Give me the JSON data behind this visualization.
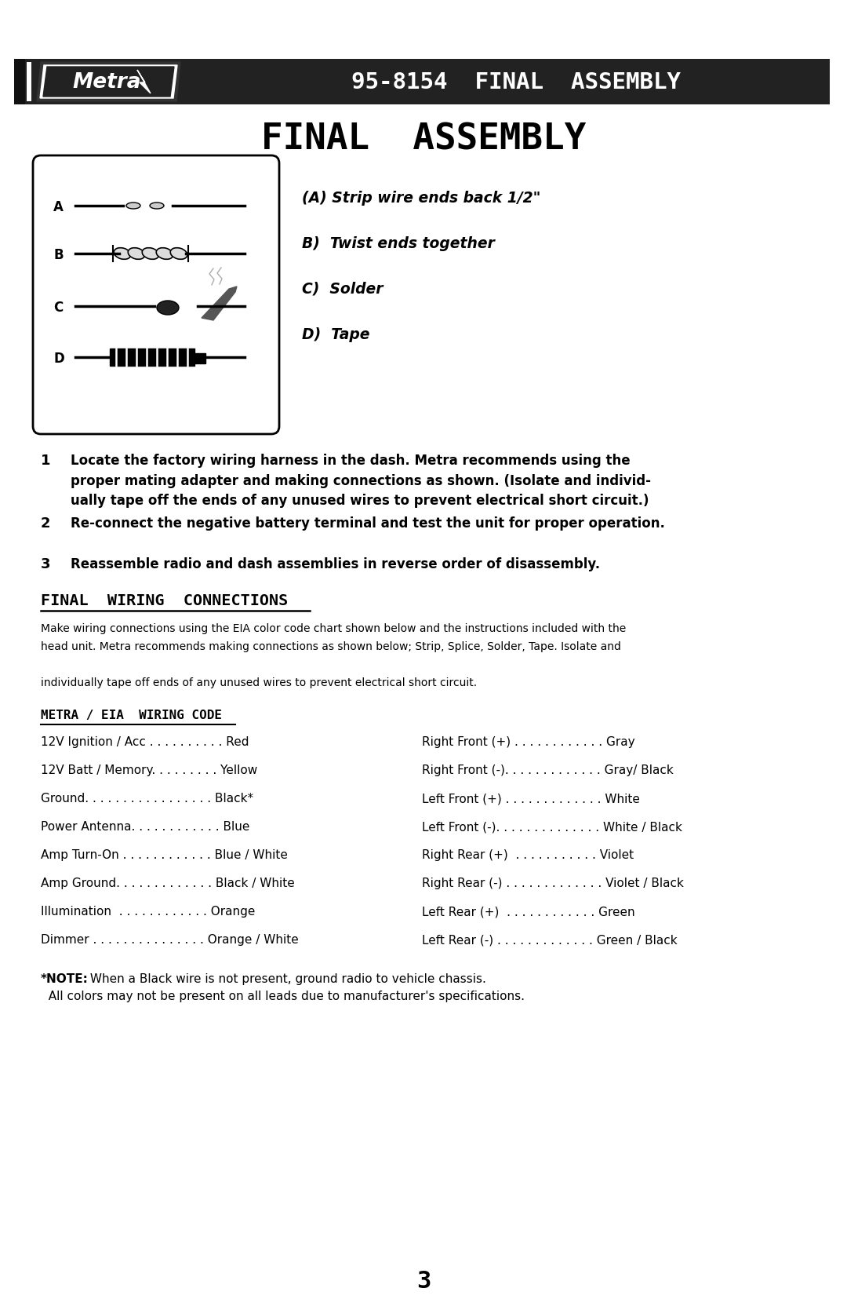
{
  "page_title": "FINAL  ASSEMBLY",
  "header_model": "95-8154  FINAL  ASSEMBLY",
  "bg_color": "#ffffff",
  "header_bg": "#2a2a2a",
  "steps_data": [
    {
      "num": "1",
      "text": "Locate the factory wiring harness in the dash. Metra recommends using the\nproper mating adapter and making connections as shown. (Isolate and individ-\nually tape off the ends of any unused wires to prevent electrical short circuit.)"
    },
    {
      "num": "2",
      "text": "Re-connect the negative battery terminal and test the unit for proper operation."
    },
    {
      "num": "3",
      "text": "Reassemble radio and dash assemblies in reverse order of disassembly."
    }
  ],
  "wiring_section_title": "FINAL  WIRING  CONNECTIONS",
  "wiring_intro_lines": [
    "Make wiring connections using the EIA color code chart shown below and the instructions included with the",
    "head unit. Metra recommends making connections as shown below; Strip, Splice, Solder, Tape. Isolate and",
    "",
    "individually tape off ends of any unused wires to prevent electrical short circuit."
  ],
  "wiring_code_title": "METRA / EIA  WIRING CODE",
  "left_wiring": [
    "12V Ignition / Acc . . . . . . . . . . Red",
    "12V Batt / Memory. . . . . . . . . Yellow",
    "Ground. . . . . . . . . . . . . . . . . Black*",
    "Power Antenna. . . . . . . . . . . . Blue",
    "Amp Turn-On . . . . . . . . . . . . Blue / White",
    "Amp Ground. . . . . . . . . . . . . Black / White",
    "Illumination  . . . . . . . . . . . . Orange",
    "Dimmer . . . . . . . . . . . . . . . Orange / White"
  ],
  "right_wiring": [
    "Right Front (+) . . . . . . . . . . . . Gray",
    "Right Front (-). . . . . . . . . . . . . Gray/ Black",
    "Left Front (+) . . . . . . . . . . . . . White",
    "Left Front (-). . . . . . . . . . . . . . White / Black",
    "Right Rear (+)  . . . . . . . . . . . Violet",
    "Right Rear (-) . . . . . . . . . . . . . Violet / Black",
    "Left Rear (+)  . . . . . . . . . . . . Green",
    "Left Rear (-) . . . . . . . . . . . . . Green / Black"
  ],
  "note_bold": "*NOTE:",
  "note_line1": " When a Black wire is not present, ground radio to vehicle chassis.",
  "note_line2": "  All colors may not be present on all leads due to manufacturer's specifications.",
  "page_number": "3",
  "diagram_annotations": [
    "(A) Strip wire ends back 1/2\"",
    "B)  Twist ends together",
    "C)  Solder",
    "D)  Tape"
  ]
}
